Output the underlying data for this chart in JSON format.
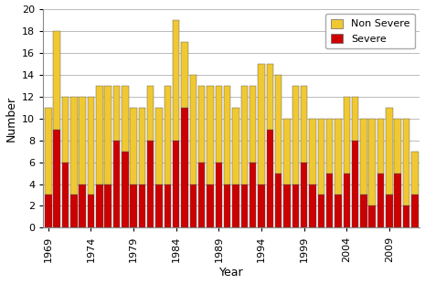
{
  "years": [
    1969,
    1970,
    1971,
    1972,
    1973,
    1974,
    1975,
    1976,
    1977,
    1978,
    1979,
    1980,
    1981,
    1982,
    1983,
    1984,
    1985,
    1986,
    1987,
    1988,
    1989,
    1990,
    1991,
    1992,
    1993,
    1994,
    1995,
    1996,
    1997,
    1998,
    1999,
    2000,
    2001,
    2002,
    2003,
    2004,
    2005,
    2006,
    2007,
    2008,
    2009,
    2010,
    2011,
    2012
  ],
  "severe": [
    3,
    9,
    6,
    3,
    4,
    3,
    4,
    4,
    8,
    7,
    4,
    4,
    8,
    4,
    4,
    8,
    11,
    4,
    6,
    4,
    6,
    4,
    4,
    4,
    6,
    4,
    9,
    5,
    4,
    4,
    6,
    4,
    3,
    5,
    3,
    5,
    8,
    3,
    2,
    5,
    3,
    5,
    2,
    3
  ],
  "non_severe": [
    8,
    9,
    6,
    9,
    8,
    9,
    9,
    9,
    5,
    6,
    7,
    7,
    5,
    7,
    9,
    11,
    6,
    10,
    7,
    9,
    7,
    9,
    7,
    9,
    7,
    11,
    6,
    9,
    6,
    9,
    7,
    6,
    7,
    5,
    7,
    7,
    4,
    7,
    8,
    5,
    8,
    5,
    8,
    4
  ],
  "severe_color": "#cc0000",
  "non_severe_color": "#f0c832",
  "ylim": [
    0,
    20
  ],
  "yticks": [
    0,
    2,
    4,
    6,
    8,
    10,
    12,
    14,
    16,
    18,
    20
  ],
  "xlabel": "Year",
  "ylabel": "Number",
  "legend_labels": [
    "Non Severe",
    "Severe"
  ],
  "background_color": "#ffffff",
  "grid_color": "#bbbbbb",
  "tick_years": [
    1969,
    1974,
    1979,
    1984,
    1989,
    1994,
    1999,
    2004,
    2009
  ]
}
